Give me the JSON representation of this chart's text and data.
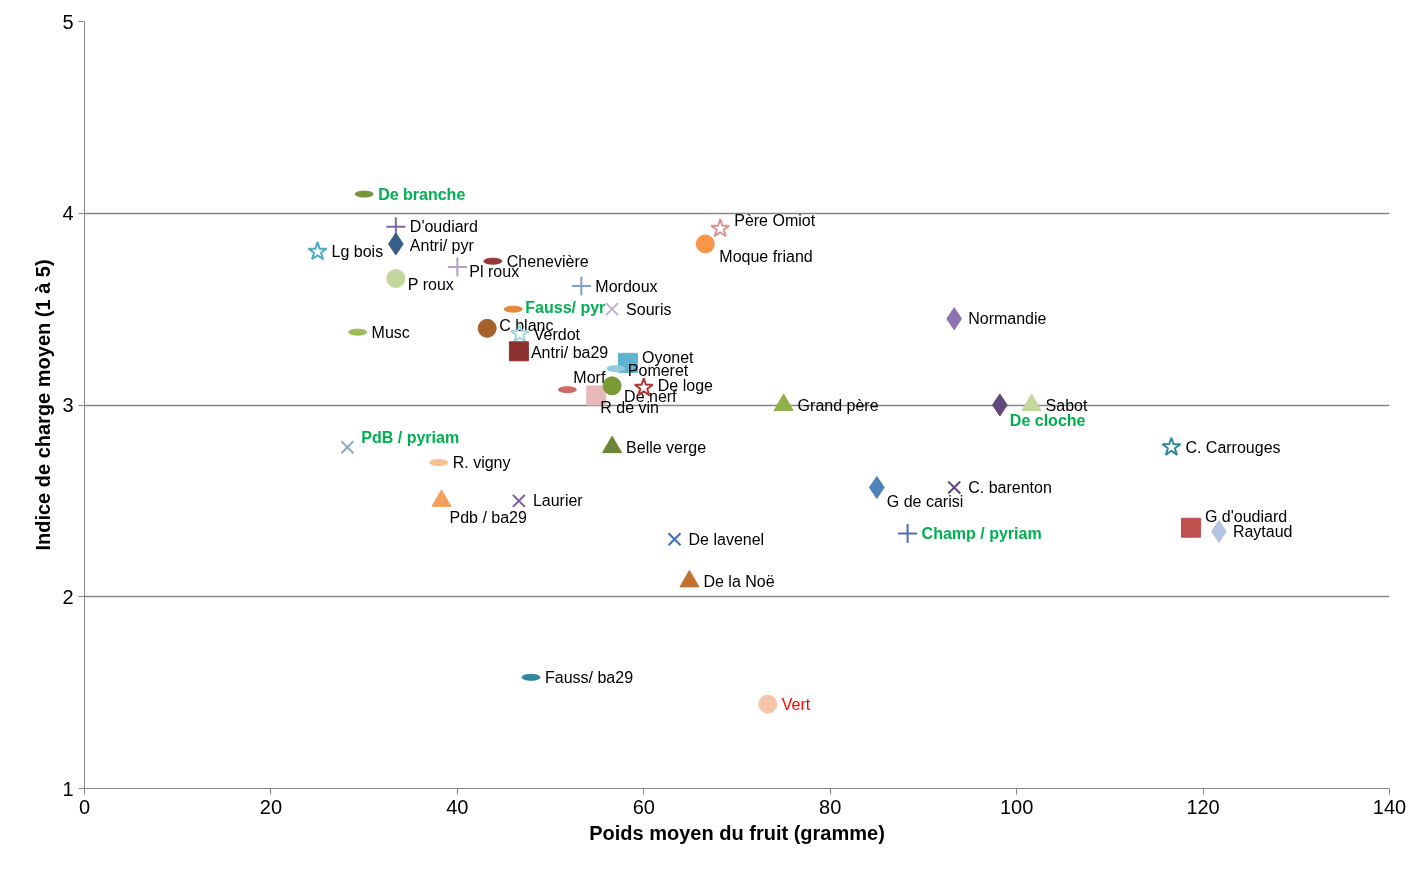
{
  "chart_data": {
    "type": "scatter",
    "xlabel": "Poids moyen du fruit (gramme)",
    "ylabel": "Indice de charge moyen (1 à 5)",
    "xlim": [
      0,
      140
    ],
    "xticks": [
      0,
      20,
      40,
      60,
      80,
      100,
      120,
      140
    ],
    "ylim": [
      1,
      5
    ],
    "yticks": [
      1,
      2,
      3,
      4,
      5
    ],
    "grid": "y",
    "series": [
      {
        "name": "De branche",
        "color": "#77933c",
        "x": [
          30.0
        ],
        "values": [
          4.1
        ]
      },
      {
        "name": "D'oudiard",
        "color": "#8064a2",
        "marker": "cross",
        "x": [
          33.4
        ],
        "values": [
          3.93
        ]
      },
      {
        "name": "Antri/ pyr",
        "color": "#385d8a",
        "marker": "diamond",
        "x": [
          33.4
        ],
        "values": [
          3.84
        ]
      },
      {
        "name": "Lg bois",
        "color": "#4bacc6",
        "marker": "star",
        "x": [
          25.0
        ],
        "values": [
          3.8
        ]
      },
      {
        "name": "P roux",
        "color": "#c3d69b",
        "marker": "circle",
        "x": [
          33.4
        ],
        "values": [
          3.66
        ]
      },
      {
        "name": "Pl roux",
        "color": "#b3a2c7",
        "marker": "cross",
        "x": [
          40.0
        ],
        "values": [
          3.72
        ]
      },
      {
        "name": "Chenevière",
        "color": "#953735",
        "x": [
          43.8
        ],
        "values": [
          3.75
        ]
      },
      {
        "name": "Mordoux",
        "color": "#7f9fd0",
        "marker": "cross",
        "x": [
          53.3
        ],
        "values": [
          3.62
        ]
      },
      {
        "name": "Fauss/ pyr",
        "color": "#e6883a",
        "x": [
          46.0
        ],
        "values": [
          3.5
        ]
      },
      {
        "name": "Souris",
        "color": "#c0b0d8",
        "marker": "x",
        "x": [
          56.6
        ],
        "values": [
          3.5
        ]
      },
      {
        "name": "Musc",
        "color": "#9bbb59",
        "x": [
          29.3
        ],
        "values": [
          3.38
        ]
      },
      {
        "name": "C blanc",
        "color": "#a6612a",
        "marker": "circle",
        "x": [
          43.2
        ],
        "values": [
          3.4
        ]
      },
      {
        "name": "Verdot",
        "color": "#a5d5e2",
        "marker": "star",
        "x": [
          46.7
        ],
        "values": [
          3.37
        ]
      },
      {
        "name": "Antri/ ba29",
        "color": "#8c3230",
        "marker": "square",
        "x": [
          46.6
        ],
        "values": [
          3.28
        ]
      },
      {
        "name": "Oyonet",
        "color": "#5fb3cf",
        "marker": "square",
        "x": [
          58.3
        ],
        "values": [
          3.22
        ]
      },
      {
        "name": "Pomeret",
        "color": "#93cddd",
        "x": [
          57.0
        ],
        "values": [
          3.19
        ]
      },
      {
        "name": "Morf",
        "color": "#d06a68",
        "x": [
          51.8
        ],
        "values": [
          3.08
        ]
      },
      {
        "name": "R de vin",
        "color": "#e6b9b8",
        "marker": "square",
        "x": [
          54.9
        ],
        "values": [
          3.05
        ]
      },
      {
        "name": "De nerf",
        "color": "#7a9a35",
        "marker": "circle",
        "x": [
          56.6
        ],
        "values": [
          3.1
        ]
      },
      {
        "name": "De loge",
        "color": "#b03a38",
        "marker": "star",
        "x": [
          60.0
        ],
        "values": [
          3.09
        ]
      },
      {
        "name": "Père Omiot",
        "color": "#d99694",
        "marker": "star",
        "x": [
          68.2
        ],
        "values": [
          3.92
        ]
      },
      {
        "name": "Moque friand",
        "color": "#f79646",
        "marker": "circle",
        "x": [
          66.6
        ],
        "values": [
          3.84
        ]
      },
      {
        "name": "Normandie",
        "color": "#8c72b0",
        "marker": "diamond",
        "x": [
          93.3
        ],
        "values": [
          3.45
        ]
      },
      {
        "name": "Grand père",
        "color": "#8fb04a",
        "marker": "triangle",
        "x": [
          75.0
        ],
        "values": [
          3.0
        ]
      },
      {
        "name": "De cloche",
        "color": "#604a7b",
        "marker": "diamond",
        "x": [
          98.2
        ],
        "values": [
          3.0
        ]
      },
      {
        "name": "Sabot",
        "color": "#c3d69b",
        "marker": "triangle",
        "x": [
          101.6
        ],
        "values": [
          3.0
        ]
      },
      {
        "name": "PdB / pyriam",
        "color": "#8ea9d4",
        "marker": "x",
        "x": [
          28.2
        ],
        "values": [
          2.78
        ]
      },
      {
        "name": "R. vigny",
        "color": "#fabf8f",
        "x": [
          38.0
        ],
        "values": [
          2.7
        ]
      },
      {
        "name": "Pdb / ba29",
        "color": "#f5a05a",
        "marker": "triangle",
        "x": [
          38.3
        ],
        "values": [
          2.5
        ]
      },
      {
        "name": "Laurier",
        "color": "#7a5a9a",
        "marker": "x",
        "x": [
          46.6
        ],
        "values": [
          2.5
        ]
      },
      {
        "name": "Belle verge",
        "color": "#6a8535",
        "marker": "triangle",
        "x": [
          56.6
        ],
        "values": [
          2.78
        ]
      },
      {
        "name": "De lavenel",
        "color": "#3f6fb5",
        "marker": "x",
        "x": [
          63.3
        ],
        "values": [
          2.3
        ]
      },
      {
        "name": "De la Noë",
        "color": "#c0722f",
        "marker": "triangle",
        "x": [
          64.9
        ],
        "values": [
          2.08
        ]
      },
      {
        "name": "Fauss/ ba29",
        "color": "#31859c",
        "x": [
          47.9
        ],
        "values": [
          1.58
        ]
      },
      {
        "name": "Vert",
        "color": "#f6c4a8",
        "marker": "circle",
        "x": [
          73.3
        ],
        "values": [
          1.44
        ]
      },
      {
        "name": "G de carisi",
        "color": "#4f81bd",
        "marker": "diamond",
        "x": [
          85.0
        ],
        "values": [
          2.57
        ]
      },
      {
        "name": "C. barenton",
        "color": "#604a7b",
        "marker": "x",
        "x": [
          93.3
        ],
        "values": [
          2.57
        ]
      },
      {
        "name": "C. Carrouges",
        "color": "#31859c",
        "marker": "star",
        "x": [
          116.6
        ],
        "values": [
          2.78
        ]
      },
      {
        "name": "Champ / pyriam",
        "color": "#4f6fb5",
        "marker": "cross",
        "x": [
          88.3
        ],
        "values": [
          2.33
        ]
      },
      {
        "name": "G d'oudiard",
        "color": "#c0504d",
        "marker": "square",
        "x": [
          118.7
        ],
        "values": [
          2.36
        ]
      },
      {
        "name": "Raytaud",
        "color": "#b3c3e0",
        "marker": "diamond",
        "x": [
          121.7
        ],
        "values": [
          2.34
        ]
      }
    ]
  }
}
